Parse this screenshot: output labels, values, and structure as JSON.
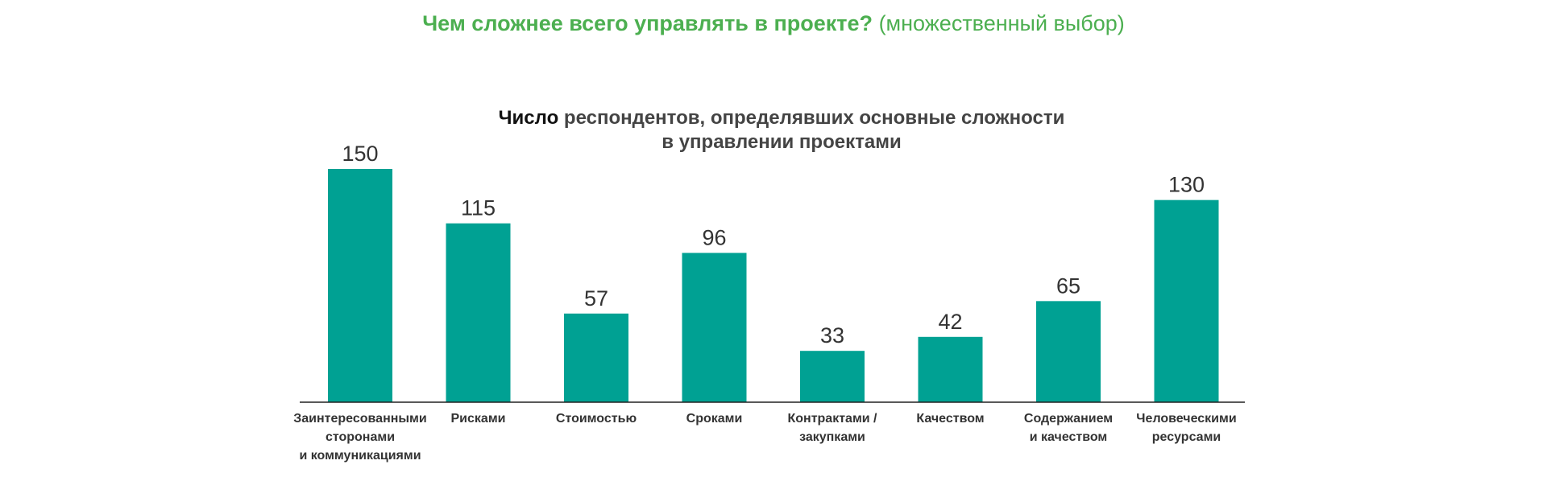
{
  "heading": {
    "bold": "Чем сложнее всего управлять в проекте?",
    "light": "(множественный выбор)"
  },
  "colors": {
    "heading": "#4caf50",
    "bar": "#00a193"
  },
  "chart_data": {
    "type": "bar",
    "title_lead": "Число",
    "title_rest": "респондентов, определявших основные сложности",
    "title_line2": "в управлении проектами",
    "xlabel": "",
    "ylabel": "",
    "ylim": [
      0,
      150
    ],
    "categories": [
      [
        "Заинтересованными",
        "сторонами",
        "и коммуникациями"
      ],
      [
        "Рисками"
      ],
      [
        "Стоимостью"
      ],
      [
        "Сроками"
      ],
      [
        "Контрактами /",
        "закупками"
      ],
      [
        "Качеством"
      ],
      [
        "Содержанием",
        "и качеством"
      ],
      [
        "Человеческими",
        "ресурсами"
      ]
    ],
    "values": [
      150,
      115,
      57,
      96,
      33,
      42,
      65,
      130
    ],
    "data_labels": true,
    "grid": false,
    "legend": "none"
  }
}
